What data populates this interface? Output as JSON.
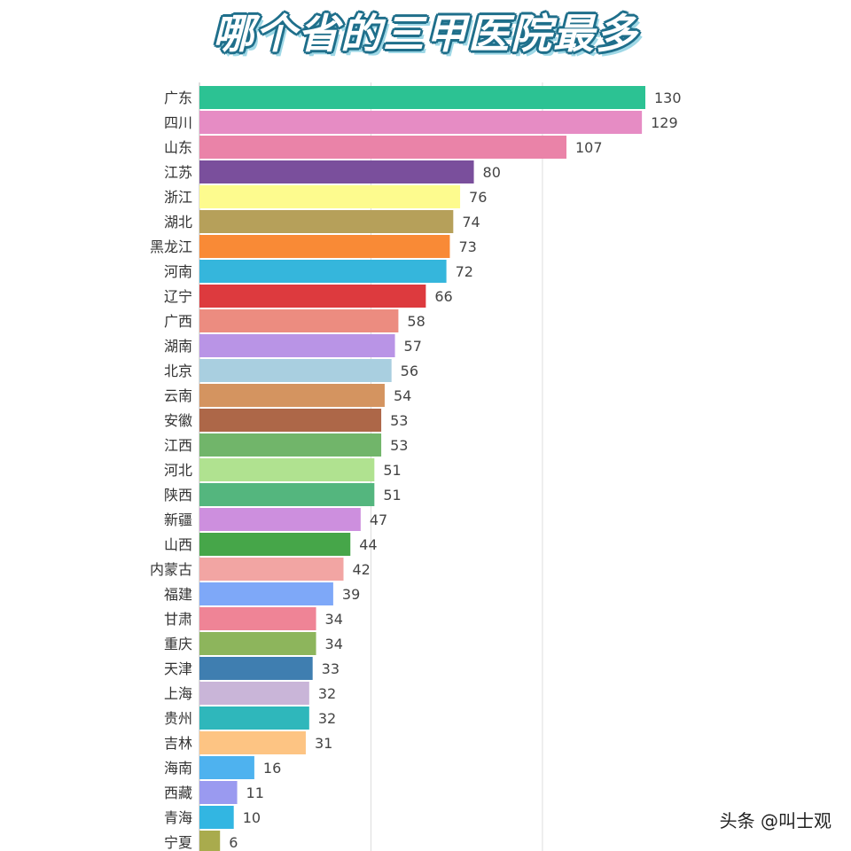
{
  "title": "哪个省的三甲医院最多",
  "watermark": "头条 @叫士观",
  "chart_data": {
    "type": "bar",
    "orientation": "horizontal",
    "title": "哪个省的三甲医院最多",
    "xlabel": "",
    "ylabel": "",
    "xlim": [
      0,
      130
    ],
    "grid": true,
    "legend": "none",
    "categories": [
      "广东",
      "四川",
      "山东",
      "江苏",
      "浙江",
      "湖北",
      "黑龙江",
      "河南",
      "辽宁",
      "广西",
      "湖南",
      "北京",
      "云南",
      "安徽",
      "江西",
      "河北",
      "陕西",
      "新疆",
      "山西",
      "内蒙古",
      "福建",
      "甘肃",
      "重庆",
      "天津",
      "上海",
      "贵州",
      "吉林",
      "海南",
      "西藏",
      "青海",
      "宁夏"
    ],
    "values": [
      130,
      129,
      107,
      80,
      76,
      74,
      73,
      72,
      66,
      58,
      57,
      56,
      54,
      53,
      53,
      51,
      51,
      47,
      44,
      42,
      39,
      34,
      34,
      33,
      32,
      32,
      31,
      16,
      11,
      10,
      6
    ],
    "colors": [
      "#2cc293",
      "#e68cc4",
      "#ea83a8",
      "#7a4f9c",
      "#fdfb8e",
      "#b6a05a",
      "#f98a36",
      "#35b6dc",
      "#dd3a3e",
      "#ec8c80",
      "#b994e6",
      "#a9cfe0",
      "#d49460",
      "#ad6748",
      "#71b56a",
      "#b0e290",
      "#54b67e",
      "#cd8fde",
      "#46a649",
      "#f2a5a3",
      "#7ea8f8",
      "#ef8496",
      "#8db55c",
      "#3f7eb0",
      "#c9b5d8",
      "#2fb7bb",
      "#fdc483",
      "#4eb2ef",
      "#9a9af0",
      "#32b6e2",
      "#a9ab4d"
    ]
  }
}
